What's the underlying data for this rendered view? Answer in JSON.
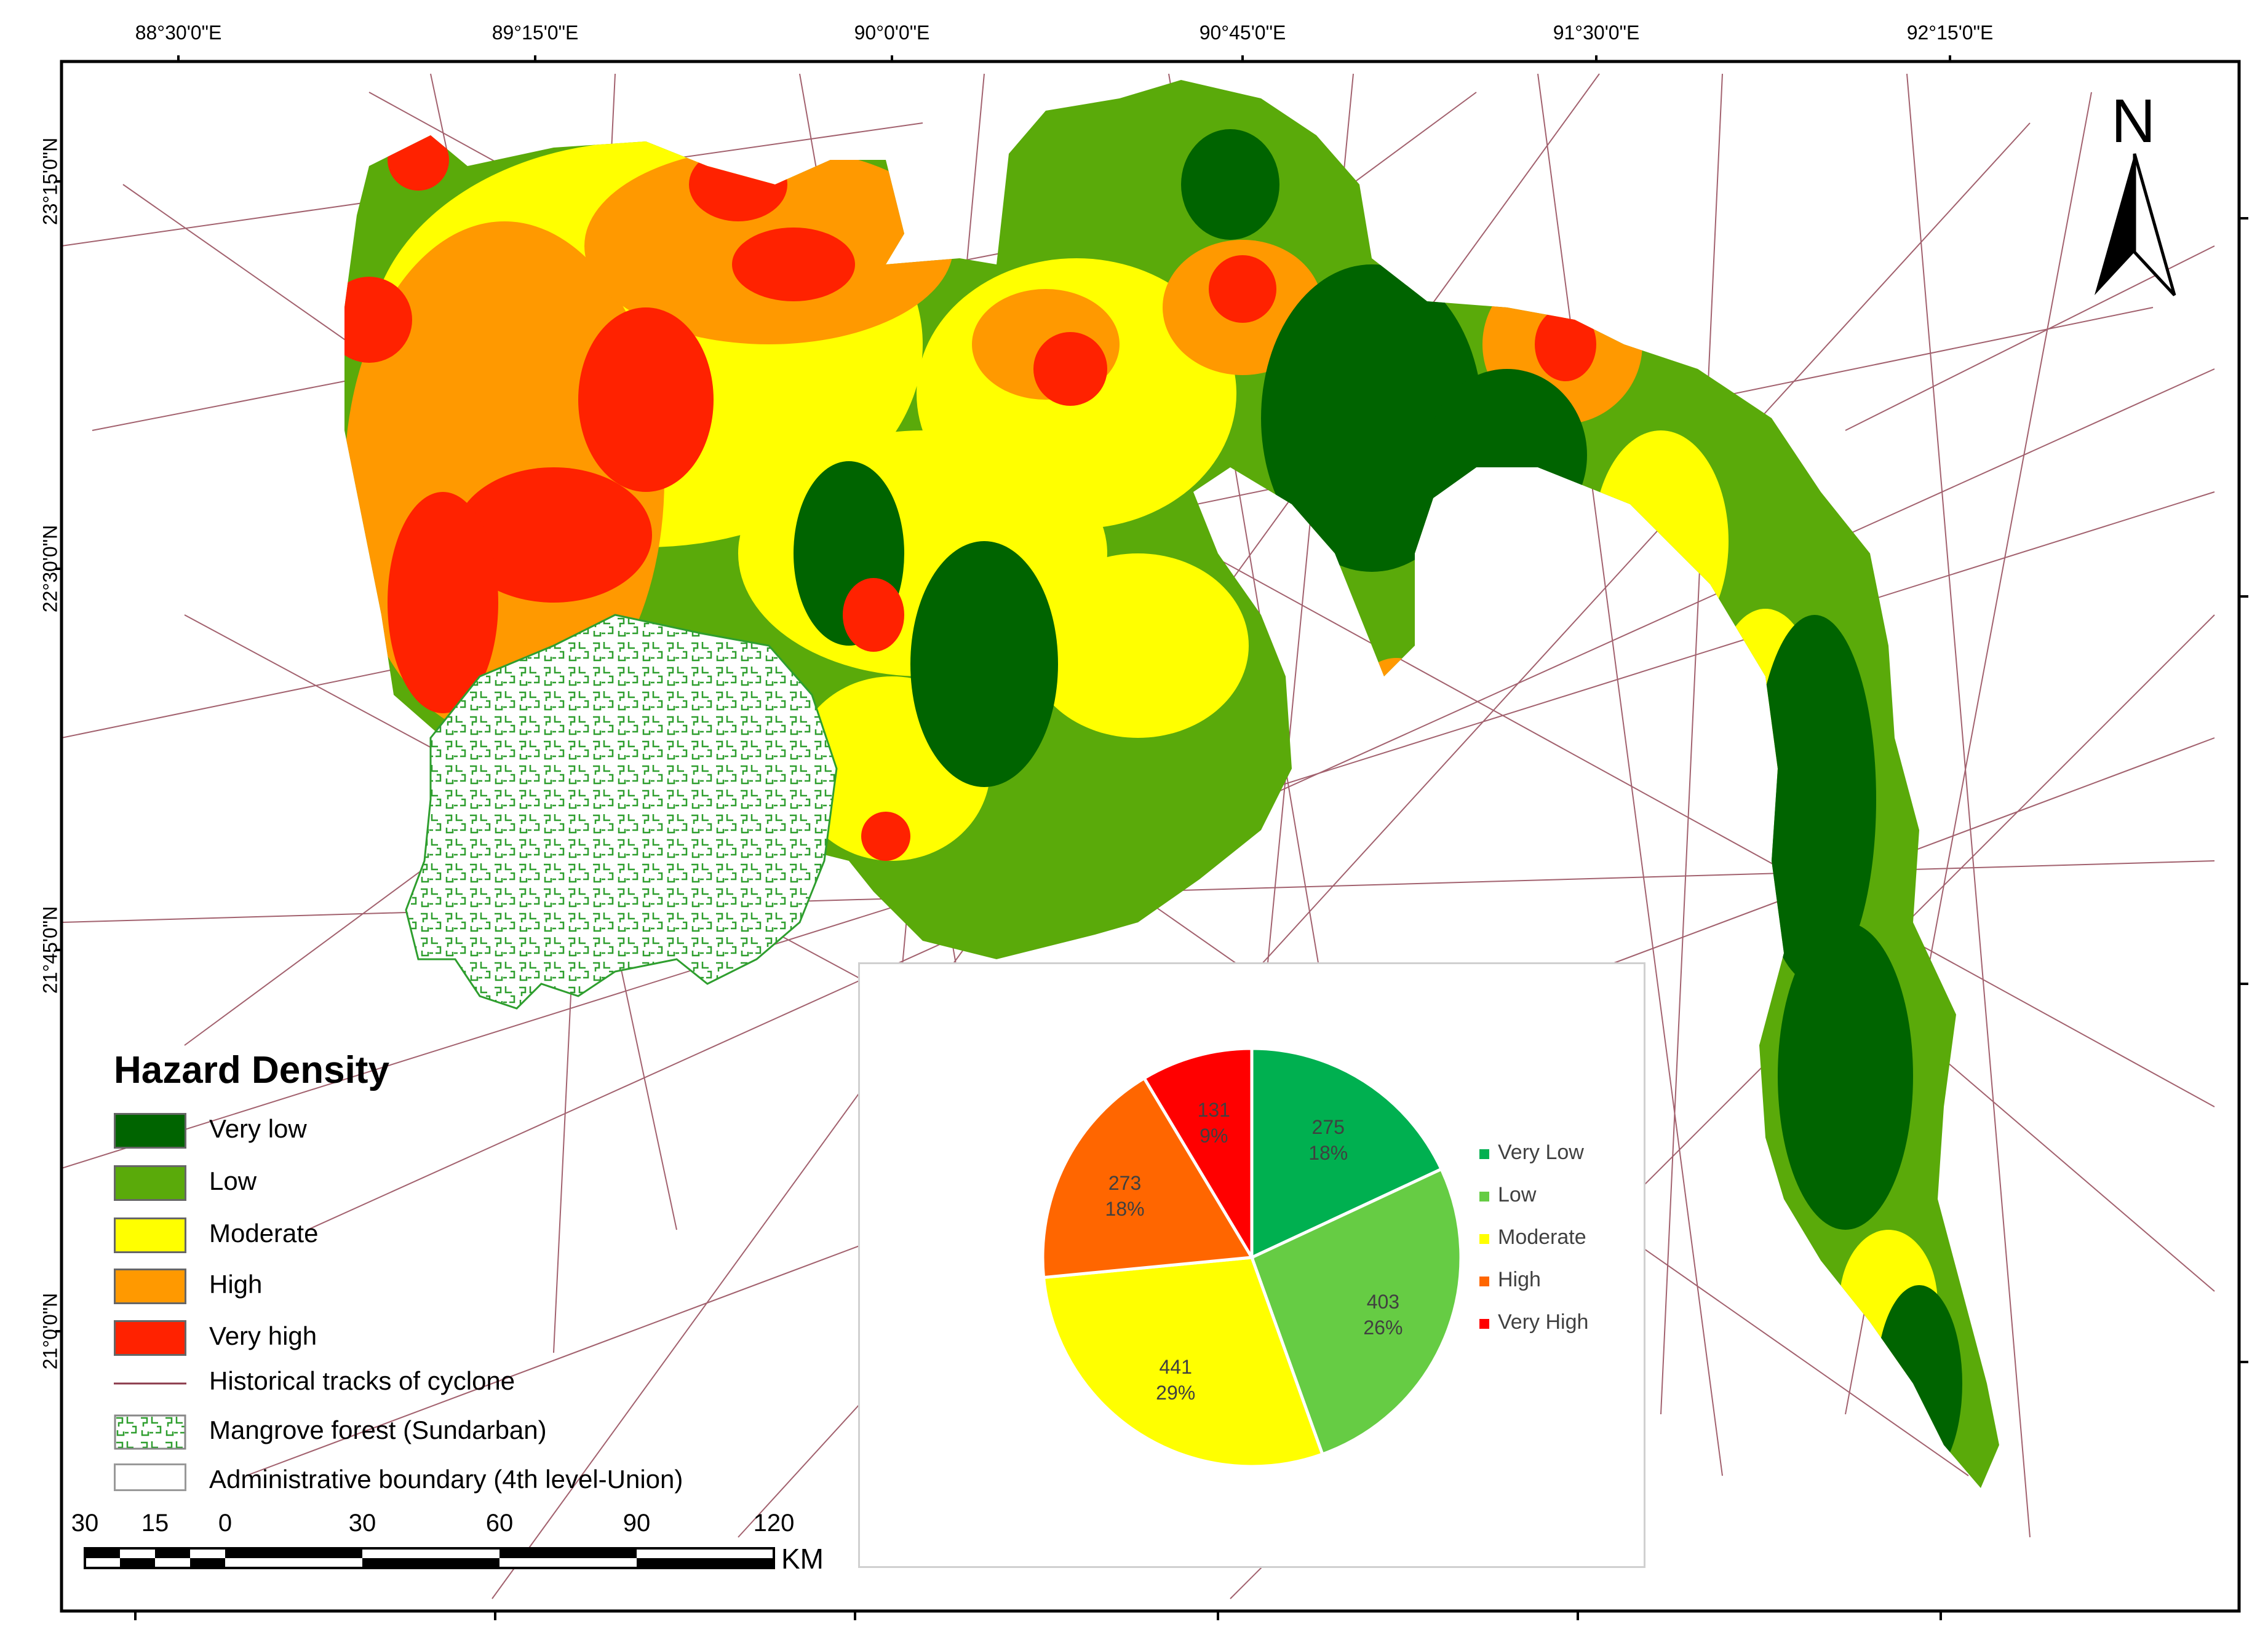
{
  "map": {
    "lon_labels": [
      "88°30'0\"E",
      "89°15'0\"E",
      "90°0'0\"E",
      "90°45'0\"E",
      "91°30'0\"E",
      "92°15'0\"E"
    ],
    "lat_labels": [
      "23°15'0\"N",
      "22°30'0\"N",
      "21°45'0\"N",
      "21°0'0\"N"
    ],
    "north_label": "N",
    "colors": {
      "very_low": "#006400",
      "low": "#5aaa0a",
      "moderate": "#ffff00",
      "high": "#ff9900",
      "very_high": "#ff2200",
      "track": "#8b3a4a",
      "mangrove": "#2e9e2e"
    }
  },
  "legend": {
    "title": "Hazard Density",
    "items": [
      {
        "label": "Very low",
        "color": "#006400"
      },
      {
        "label": "Low",
        "color": "#5aaa0a"
      },
      {
        "label": "Moderate",
        "color": "#ffff00"
      },
      {
        "label": "High",
        "color": "#ff9900"
      },
      {
        "label": "Very high",
        "color": "#ff2200"
      }
    ],
    "track_label": "Historical tracks of cyclone",
    "mangrove_label": "Mangrove forest (Sundarban)",
    "admin_label": "Administrative boundary (4th level-Union)"
  },
  "scale_bar": {
    "ticks": [
      "30",
      "15",
      "0",
      "30",
      "60",
      "90",
      "120"
    ],
    "unit": "KM"
  },
  "chart_data": {
    "type": "pie",
    "categories": [
      "Very Low",
      "Low",
      "Moderate",
      "High",
      "Very High"
    ],
    "values": [
      275,
      403,
      441,
      273,
      131
    ],
    "percent_labels": [
      "18%",
      "26%",
      "29%",
      "18%",
      "9%"
    ],
    "colors": [
      "#00b050",
      "#66cc44",
      "#ffff00",
      "#ff6600",
      "#ff0000"
    ],
    "legend_position": "right"
  }
}
